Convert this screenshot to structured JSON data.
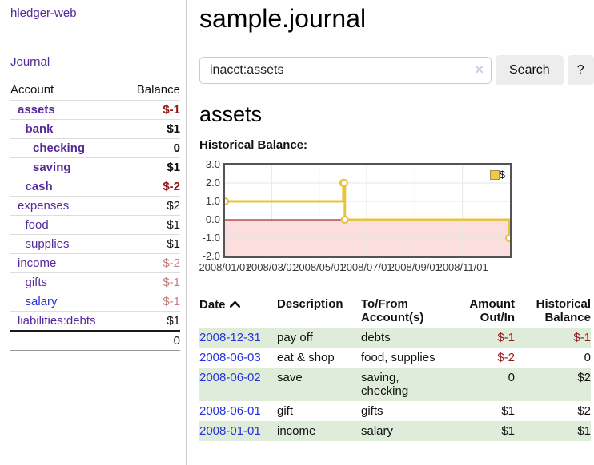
{
  "app": {
    "brand": "hledger-web"
  },
  "sidebar": {
    "nav": {
      "journal": "Journal"
    },
    "accounts_header": {
      "account": "Account",
      "balance": "Balance"
    },
    "accounts": [
      {
        "name": "assets",
        "balance": "$-1",
        "level": 0,
        "bold": true,
        "neg": "strong",
        "link": "visited"
      },
      {
        "name": "bank",
        "balance": "$1",
        "level": 1,
        "bold": true,
        "neg": null,
        "link": "visited"
      },
      {
        "name": "checking",
        "balance": "0",
        "level": 2,
        "bold": true,
        "neg": null,
        "link": "visited"
      },
      {
        "name": "saving",
        "balance": "$1",
        "level": 2,
        "bold": true,
        "neg": null,
        "link": "visited"
      },
      {
        "name": "cash",
        "balance": "$-2",
        "level": 1,
        "bold": true,
        "neg": "strong",
        "link": "visited"
      },
      {
        "name": "expenses",
        "balance": "$2",
        "level": 0,
        "bold": false,
        "neg": null,
        "link": "visited"
      },
      {
        "name": "food",
        "balance": "$1",
        "level": 1,
        "bold": false,
        "neg": null,
        "link": "visited"
      },
      {
        "name": "supplies",
        "balance": "$1",
        "level": 1,
        "bold": false,
        "neg": null,
        "link": "visited"
      },
      {
        "name": "income",
        "balance": "$-2",
        "level": 0,
        "bold": false,
        "neg": "soft",
        "link": "visited"
      },
      {
        "name": "gifts",
        "balance": "$-1",
        "level": 1,
        "bold": false,
        "neg": "soft",
        "link": "visited"
      },
      {
        "name": "salary",
        "balance": "$-1",
        "level": 1,
        "bold": false,
        "neg": "soft",
        "link": "unvisited"
      },
      {
        "name": "liabilities:debts",
        "balance": "$1",
        "level": 0,
        "bold": false,
        "neg": null,
        "link": "visited"
      }
    ],
    "total": "0"
  },
  "header": {
    "title": "sample.journal"
  },
  "search": {
    "value": "inacct:assets",
    "clear_icon": "×",
    "button_label": "Search",
    "help_label": "?"
  },
  "account_page": {
    "heading": "assets",
    "chart_label": "Historical Balance:"
  },
  "chart_data": {
    "type": "line",
    "title": "Historical Balance",
    "style": "step-line with point markers, area below zero shaded",
    "legend": {
      "position": "top-right",
      "entries": [
        "$"
      ]
    },
    "x_domain_days": [
      0,
      366
    ],
    "ylim": [
      -2,
      3
    ],
    "y_ticks": [
      3,
      2,
      1,
      0,
      -1,
      -2
    ],
    "x_ticks": [
      {
        "label": "2008/01/01",
        "day": 0
      },
      {
        "label": "2008/03/01",
        "day": 60
      },
      {
        "label": "2008/05/01",
        "day": 121
      },
      {
        "label": "2008/07/01",
        "day": 182
      },
      {
        "label": "2008/09/01",
        "day": 244
      },
      {
        "label": "2008/11/01",
        "day": 305
      }
    ],
    "series": [
      {
        "name": "$",
        "color": "#e9c33e",
        "points": [
          {
            "date": "2008-01-01",
            "day": 0,
            "value": 1
          },
          {
            "date": "2008-06-01",
            "day": 152,
            "value": 2
          },
          {
            "date": "2008-06-02",
            "day": 153,
            "value": 2
          },
          {
            "date": "2008-06-03",
            "day": 154,
            "value": 0
          },
          {
            "date": "2008-12-31",
            "day": 365,
            "value": -1
          }
        ]
      }
    ],
    "grid": true,
    "gridline_color": "#e6e6e6",
    "negative_fill": "#fbdede",
    "zero_line_color": "#8b0000"
  },
  "register": {
    "headers": {
      "date": "Date",
      "description": "Description",
      "tofrom": "To/From Account(s)",
      "amount": "Amount Out/In",
      "balance": "Historical Balance"
    },
    "sort_icon": "chevron-up",
    "sort_column": "date",
    "rows": [
      {
        "date": "2008-12-31",
        "description": "pay off",
        "tofrom": "debts",
        "amount": "$-1",
        "balance": "$-1",
        "amount_neg": true,
        "balance_neg": true
      },
      {
        "date": "2008-06-03",
        "description": "eat & shop",
        "tofrom": "food, supplies",
        "amount": "$-2",
        "balance": "0",
        "amount_neg": true,
        "balance_neg": false
      },
      {
        "date": "2008-06-02",
        "description": "save",
        "tofrom": "saving,\nchecking",
        "amount": "0",
        "balance": "$2",
        "amount_neg": false,
        "balance_neg": false
      },
      {
        "date": "2008-06-01",
        "description": "gift",
        "tofrom": "gifts",
        "amount": "$1",
        "balance": "$2",
        "amount_neg": false,
        "balance_neg": false
      },
      {
        "date": "2008-01-01",
        "description": "income",
        "tofrom": "salary",
        "amount": "$1",
        "balance": "$1",
        "amount_neg": false,
        "balance_neg": false
      }
    ]
  },
  "colors": {
    "link_visited_purple": "#552a9b",
    "link_unvisited_blue": "#2433dd",
    "negative_strong": "#941a1a",
    "negative_soft": "#c27e7e",
    "row_stripe_green": "#dfecd9",
    "chart_series_yellow": "#e9c33e",
    "chart_negative_pink": "#fbdede",
    "chart_zero_line": "#8b0000",
    "button_gray": "#ededed"
  }
}
